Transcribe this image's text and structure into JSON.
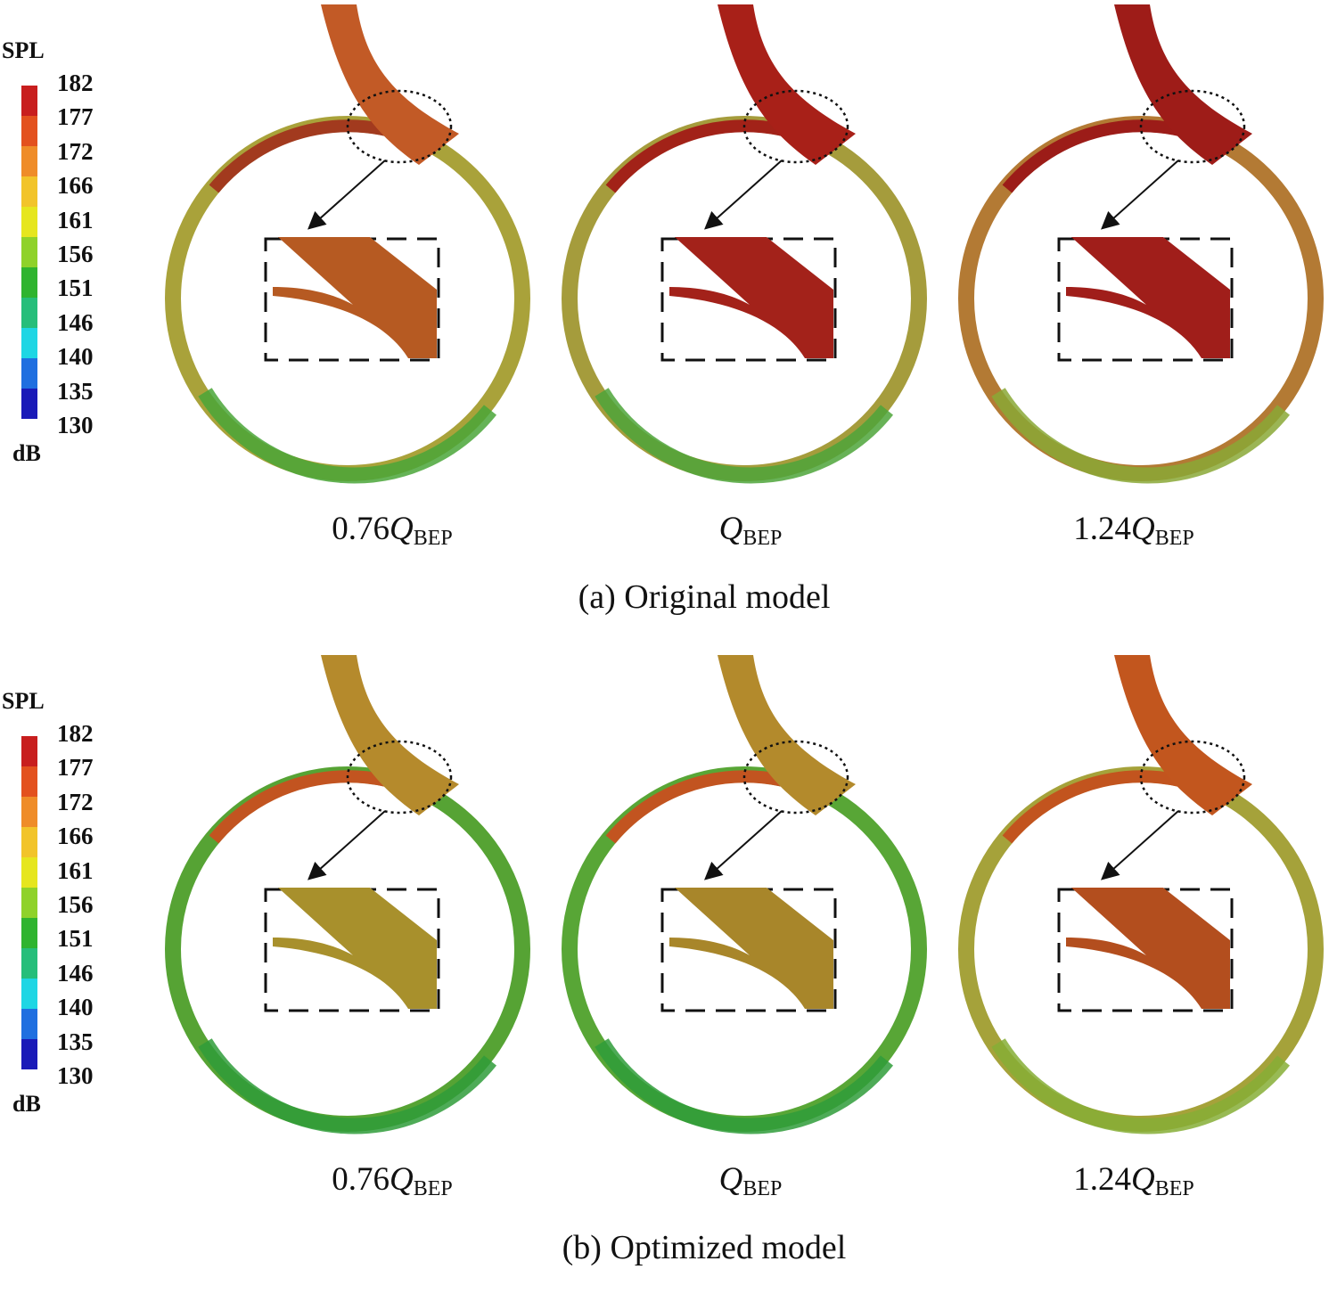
{
  "colorbar": {
    "title": "SPL",
    "unit": "dB",
    "ticks": [
      "182",
      "177",
      "172",
      "166",
      "161",
      "156",
      "151",
      "146",
      "140",
      "135",
      "130"
    ],
    "colors": [
      "#c81e1e",
      "#e3511e",
      "#ef8c28",
      "#f2c42a",
      "#e6e61e",
      "#8fd22a",
      "#2fb42f",
      "#26be7a",
      "#1ed6e4",
      "#1f6fe0",
      "#1a1ab8"
    ]
  },
  "panels": [
    {
      "caption": "(a) Original model",
      "conditions": [
        {
          "coef": "0.76",
          "q": "Q",
          "sub": "BEP",
          "ring": "#a9a23a",
          "ring_hot": "#a23a1e",
          "pipe": "#c25a26",
          "inset": "#b65a22",
          "low": "#4aa638"
        },
        {
          "coef": "",
          "q": "Q",
          "sub": "BEP",
          "ring": "#a59c3c",
          "ring_hot": "#a22218",
          "pipe": "#a82018",
          "inset": "#a3221a",
          "low": "#4ea43a"
        },
        {
          "coef": "1.24",
          "q": "Q",
          "sub": "BEP",
          "ring": "#b37a34",
          "ring_hot": "#9c1c18",
          "pipe": "#9e1c18",
          "inset": "#a01e1a",
          "low": "#8aa836"
        }
      ]
    },
    {
      "caption": "(b) Optimized model",
      "conditions": [
        {
          "coef": "0.76",
          "q": "Q",
          "sub": "BEP",
          "ring": "#56a334",
          "ring_hot": "#c25420",
          "pipe": "#b58a2c",
          "inset": "#a8902c",
          "low": "#2f9c3a"
        },
        {
          "coef": "",
          "q": "Q",
          "sub": "BEP",
          "ring": "#58a636",
          "ring_hot": "#c25420",
          "pipe": "#b38a2c",
          "inset": "#a8862a",
          "low": "#2f9c3a"
        },
        {
          "coef": "1.24",
          "q": "Q",
          "sub": "BEP",
          "ring": "#a5a23a",
          "ring_hot": "#c2541e",
          "pipe": "#c2561e",
          "inset": "#b34e1e",
          "low": "#86ae36"
        }
      ]
    }
  ]
}
